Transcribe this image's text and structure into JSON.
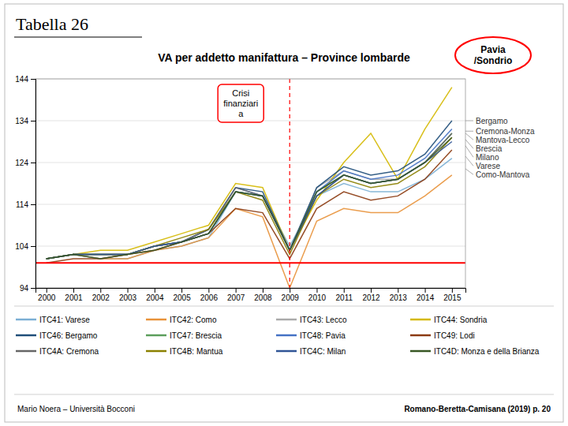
{
  "chart_data": {
    "type": "line",
    "header": "Tabella 26",
    "title": "VA per addetto manifattura – Province lombarde",
    "x": [
      2000,
      2001,
      2002,
      2003,
      2004,
      2005,
      2006,
      2007,
      2008,
      2009,
      2010,
      2011,
      2012,
      2013,
      2014,
      2015
    ],
    "xlim": [
      1999.6,
      2015.5
    ],
    "xticks": [
      2000,
      2001,
      2002,
      2003,
      2004,
      2005,
      2006,
      2007,
      2008,
      2009,
      2010,
      2011,
      2012,
      2013,
      2014,
      2015
    ],
    "ylim": [
      94,
      144
    ],
    "yticks": [
      94,
      104,
      114,
      124,
      134,
      144
    ],
    "grid": "y",
    "series": [
      {
        "name": "ITC41: Varese",
        "color": "#7BAFD4",
        "values": [
          101,
          102,
          101,
          101,
          103,
          104,
          106,
          117,
          116,
          104,
          116,
          119,
          117,
          117,
          120,
          125
        ]
      },
      {
        "name": "ITC42: Como",
        "color": "#E8923A",
        "values": [
          101,
          102,
          101,
          101,
          103,
          104,
          106,
          113,
          111,
          94,
          110,
          113,
          112,
          112,
          116,
          121
        ]
      },
      {
        "name": "ITC43: Lecco",
        "color": "#AAAAAA",
        "values": [
          101,
          102,
          101,
          102,
          104,
          105,
          107,
          117,
          116,
          103,
          118,
          122,
          120,
          120,
          124,
          131
        ]
      },
      {
        "name": "ITC44: Sondria",
        "color": "#D4B800",
        "values": [
          101,
          102,
          103,
          103,
          105,
          107,
          109,
          119,
          118,
          103,
          115,
          124,
          131,
          120,
          132,
          142
        ]
      },
      {
        "name": "ITC46: Bergamo",
        "color": "#1F4E79",
        "values": [
          101,
          102,
          102,
          102,
          104,
          105,
          108,
          118,
          117,
          103,
          118,
          123,
          121,
          122,
          126,
          134
        ]
      },
      {
        "name": "ITC47: Brescia",
        "color": "#5B9E5B",
        "values": [
          101,
          102,
          102,
          102,
          104,
          105,
          107,
          117,
          116,
          103,
          117,
          121,
          119,
          120,
          124,
          131
        ]
      },
      {
        "name": "ITC48: Pavia",
        "color": "#4472C4",
        "values": [
          101,
          102,
          102,
          102,
          104,
          105,
          108,
          118,
          116,
          103,
          117,
          122,
          120,
          121,
          125,
          132
        ]
      },
      {
        "name": "ITC49: Lodi",
        "color": "#8B3A0F",
        "values": [
          100,
          101,
          101,
          102,
          103,
          105,
          107,
          113,
          112,
          101,
          113,
          117,
          115,
          116,
          120,
          127
        ]
      },
      {
        "name": "ITC4A: Cremona",
        "color": "#666666",
        "values": [
          101,
          102,
          102,
          102,
          104,
          105,
          108,
          118,
          116,
          103,
          116,
          121,
          119,
          120,
          124,
          131
        ]
      },
      {
        "name": "ITC4B: Mantua",
        "color": "#8B8000",
        "values": [
          101,
          102,
          102,
          102,
          104,
          106,
          108,
          117,
          115,
          102,
          116,
          120,
          118,
          119,
          123,
          130
        ]
      },
      {
        "name": "ITC4C: Milan",
        "color": "#2F5496",
        "values": [
          101,
          102,
          102,
          102,
          104,
          105,
          107,
          117,
          116,
          103,
          116,
          121,
          119,
          120,
          124,
          129
        ]
      },
      {
        "name": "ITC4D: Monza e della Brianza",
        "color": "#375623",
        "values": [
          101,
          102,
          101,
          102,
          103,
          105,
          107,
          117,
          116,
          103,
          117,
          121,
          119,
          120,
          124,
          130
        ]
      }
    ],
    "reference_lines": [
      {
        "axis": "y",
        "value": 100,
        "color": "red",
        "line_style": "solid"
      },
      {
        "axis": "x",
        "value": 2009,
        "color": "red",
        "line_style": "dashed"
      }
    ],
    "annotations": [
      {
        "text": "Crisi\nfinanziari\na",
        "x": 2009
      },
      {
        "text": "Pavia\n/Sondrio"
      },
      {
        "text": "Cremona-Monza",
        "y": 131.5
      },
      {
        "text": "Bergamo",
        "y": 134.0
      },
      {
        "text": "Mantova-Lecco",
        "y": 131.0
      },
      {
        "text": "Varese",
        "y": 125.5
      },
      {
        "text": "Brescia",
        "y": 129.5
      },
      {
        "text": "Milano",
        "y": 128.0
      },
      {
        "text": "Como-Mantova",
        "y": 122.5
      }
    ],
    "footer": [
      "Mario Noera – Università Bocconi",
      "Romano-Beretta-Camisana (2019) p. 20"
    ]
  }
}
